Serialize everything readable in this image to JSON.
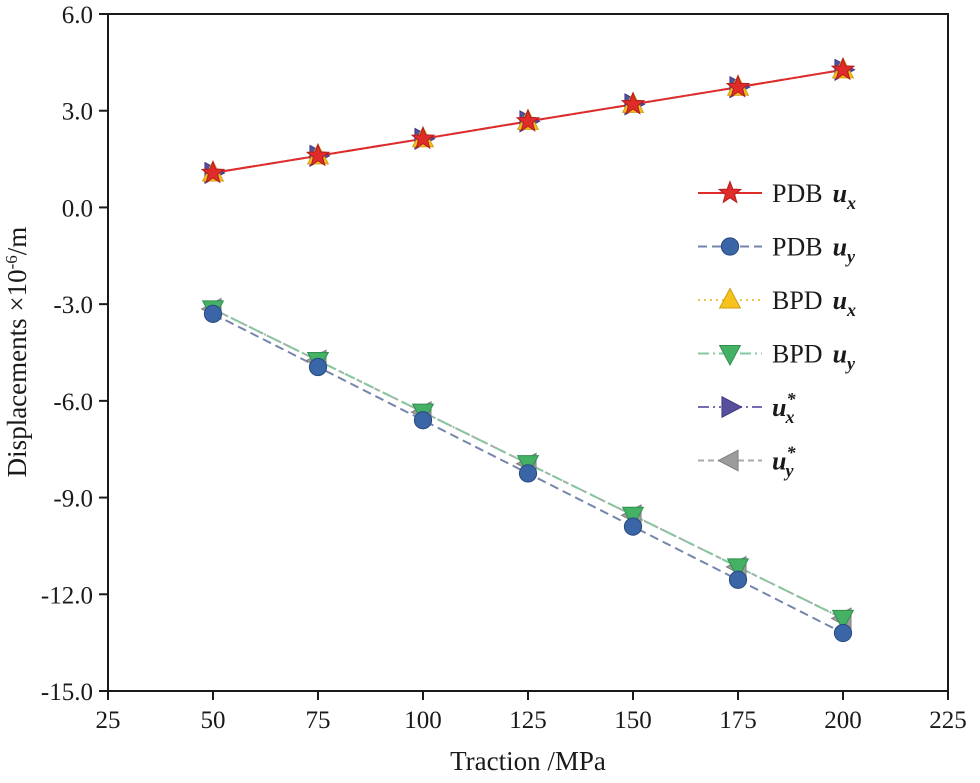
{
  "figure": {
    "background": "#ffffff"
  },
  "chart_data": {
    "type": "line",
    "title": "",
    "xlabel": "Traction /MPa",
    "ylabel": "Displacements ×10⁻⁶/m",
    "ylabel_parts": {
      "pre": "Displacements ×10",
      "sup": "-6",
      "post": "/m"
    },
    "xlim": [
      25,
      225
    ],
    "ylim": [
      -15,
      6
    ],
    "xticks": [
      "25",
      "50",
      "75",
      "100",
      "125",
      "150",
      "175",
      "200",
      "225"
    ],
    "xtick_values": [
      25,
      50,
      75,
      100,
      125,
      150,
      175,
      200,
      225
    ],
    "yticks": [
      "6.0",
      "3.0",
      "0.0",
      "-3.0",
      "-6.0",
      "-9.0",
      "-12.0",
      "-15.0"
    ],
    "ytick_values": [
      6,
      3,
      0,
      -3,
      -6,
      -9,
      -12,
      -15
    ],
    "grid": false,
    "legend_position": "middle-right",
    "x": [
      50,
      75,
      100,
      125,
      150,
      175,
      200
    ],
    "series": [
      {
        "id": "pdb-ux",
        "name": "PDB ux",
        "legend": {
          "prefix": "PDB",
          "sym": "u",
          "sub": "x",
          "sup": ""
        },
        "color": "#e02b2b",
        "line_style": "solid",
        "marker": "star",
        "marker_color": "#e02b2b",
        "marker_edge": "#b21d1d",
        "values": [
          1.07,
          1.6,
          2.13,
          2.67,
          3.2,
          3.73,
          4.27
        ]
      },
      {
        "id": "pdb-uy",
        "name": "PDB uy",
        "legend": {
          "prefix": "PDB",
          "sym": "u",
          "sub": "y",
          "sup": ""
        },
        "color": "#7585ab",
        "line_style": "dash",
        "marker": "circle",
        "marker_color": "#3a66a8",
        "marker_edge": "#29497e",
        "values": [
          -3.3,
          -4.95,
          -6.6,
          -8.25,
          -9.9,
          -11.55,
          -13.2
        ]
      },
      {
        "id": "bpd-ux",
        "name": "BPD ux",
        "legend": {
          "prefix": "BPD",
          "sym": "u",
          "sub": "x",
          "sup": ""
        },
        "color": "#ecc44f",
        "line_style": "dot",
        "marker": "triangle-up",
        "marker_color": "#f6c21e",
        "marker_edge": "#cf9e12",
        "values": [
          1.07,
          1.6,
          2.13,
          2.67,
          3.2,
          3.73,
          4.27
        ]
      },
      {
        "id": "bpd-uy",
        "name": "BPD uy",
        "legend": {
          "prefix": "BPD",
          "sym": "u",
          "sub": "y",
          "sup": ""
        },
        "color": "#86c79f",
        "line_style": "dashdot",
        "marker": "triangle-down",
        "marker_color": "#44b164",
        "marker_edge": "#2f8f4e",
        "values": [
          -3.15,
          -4.75,
          -6.35,
          -7.95,
          -9.55,
          -11.15,
          -12.75
        ]
      },
      {
        "id": "ux-star",
        "name": "ux*",
        "legend": {
          "prefix": "",
          "sym": "u",
          "sub": "x",
          "sup": "*"
        },
        "color": "#746eb0",
        "line_style": "dashdotdot",
        "marker": "triangle-right",
        "marker_color": "#57519d",
        "marker_edge": "#403a84",
        "values": [
          1.07,
          1.6,
          2.13,
          2.67,
          3.2,
          3.73,
          4.27
        ]
      },
      {
        "id": "uy-star",
        "name": "uy*",
        "legend": {
          "prefix": "",
          "sym": "u",
          "sub": "y",
          "sup": "*"
        },
        "color": "#ababab",
        "line_style": "shortdash",
        "marker": "triangle-left",
        "marker_color": "#9c9c9c",
        "marker_edge": "#808080",
        "values": [
          -3.15,
          -4.75,
          -6.35,
          -7.95,
          -9.55,
          -11.15,
          -12.75
        ]
      }
    ]
  },
  "colors": {
    "axis": "#1a1a1a",
    "text": "#1a1a1a"
  }
}
